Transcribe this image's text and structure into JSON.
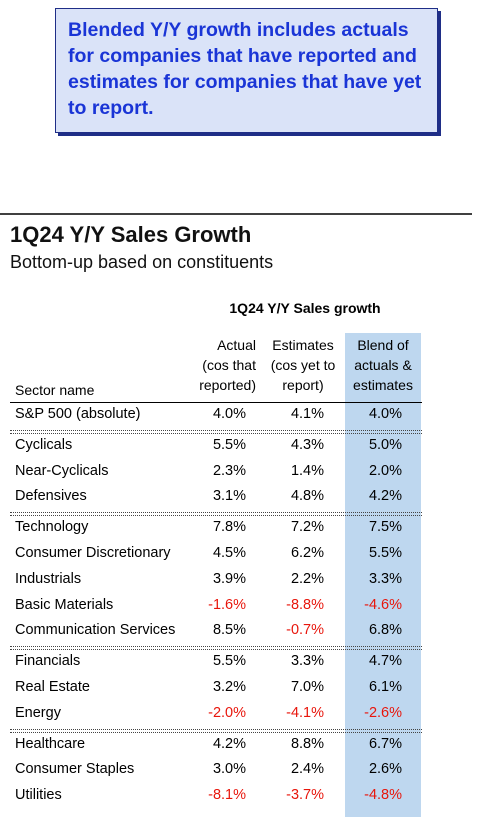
{
  "callout": {
    "text": "Blended Y/Y growth includes actuals for companies that have reported and estimates for companies that have yet to report."
  },
  "title": "1Q24 Y/Y Sales Growth",
  "subtitle": "Bottom-up based on constituents",
  "table": {
    "group_header": "1Q24 Y/Y Sales growth",
    "col_sector": "Sector name",
    "col_actual": [
      "Actual",
      "(cos that",
      "reported)"
    ],
    "col_estimates": [
      "Estimates",
      "(cos yet to",
      "report)"
    ],
    "col_blend": [
      "Blend of",
      "actuals &",
      "estimates"
    ],
    "groups": [
      [
        {
          "name": "S&P 500 (absolute)",
          "actual": "4.0%",
          "estimates": "4.1%",
          "blend": "4.0%"
        }
      ],
      [
        {
          "name": "Cyclicals",
          "actual": "5.5%",
          "estimates": "4.3%",
          "blend": "5.0%"
        },
        {
          "name": "Near-Cyclicals",
          "actual": "2.3%",
          "estimates": "1.4%",
          "blend": "2.0%"
        },
        {
          "name": "Defensives",
          "actual": "3.1%",
          "estimates": "4.8%",
          "blend": "4.2%"
        }
      ],
      [
        {
          "name": "Technology",
          "actual": "7.8%",
          "estimates": "7.2%",
          "blend": "7.5%"
        },
        {
          "name": "Consumer Discretionary",
          "actual": "4.5%",
          "estimates": "6.2%",
          "blend": "5.5%"
        },
        {
          "name": "Industrials",
          "actual": "3.9%",
          "estimates": "2.2%",
          "blend": "3.3%"
        },
        {
          "name": "Basic Materials",
          "actual": "-1.6%",
          "estimates": "-8.8%",
          "blend": "-4.6%"
        },
        {
          "name": "Communication Services",
          "actual": "8.5%",
          "estimates": "-0.7%",
          "blend": "6.8%"
        }
      ],
      [
        {
          "name": "Financials",
          "actual": "5.5%",
          "estimates": "3.3%",
          "blend": "4.7%"
        },
        {
          "name": "Real Estate",
          "actual": "3.2%",
          "estimates": "7.0%",
          "blend": "6.1%"
        },
        {
          "name": "Energy",
          "actual": "-2.0%",
          "estimates": "-4.1%",
          "blend": "-2.6%"
        }
      ],
      [
        {
          "name": "Healthcare",
          "actual": "4.2%",
          "estimates": "8.8%",
          "blend": "6.7%"
        },
        {
          "name": "Consumer Staples",
          "actual": "3.0%",
          "estimates": "2.4%",
          "blend": "2.6%"
        },
        {
          "name": "Utilities",
          "actual": "-8.1%",
          "estimates": "-3.7%",
          "blend": "-4.8%"
        }
      ]
    ]
  },
  "colors": {
    "negative": "#e8160c",
    "blend_highlight": "#bed7ef",
    "callout_text": "#1a35d6",
    "callout_bg": "#dae3f8"
  }
}
